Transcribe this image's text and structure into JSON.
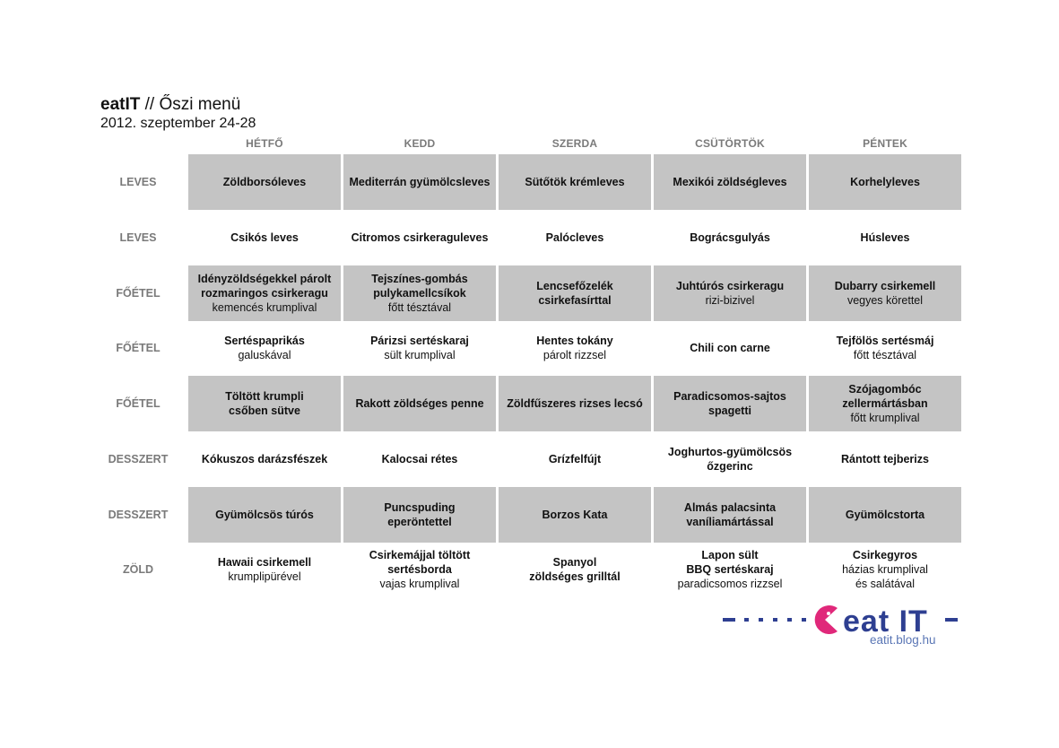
{
  "header": {
    "brand": "eatIT",
    "title_rest": " // Őszi menü",
    "date_range": "2012. szeptember 24-28"
  },
  "days": [
    "HÉTFŐ",
    "KEDD",
    "SZERDA",
    "CSÜTÖRTÖK",
    "PÉNTEK"
  ],
  "rows": [
    {
      "category": "LEVES",
      "shaded": true,
      "items": [
        {
          "name": "Zöldborsóleves",
          "side": ""
        },
        {
          "name": "Mediterrán gyümölcsleves",
          "side": ""
        },
        {
          "name": "Sütőtök krémleves",
          "side": ""
        },
        {
          "name": "Mexikói zöldségleves",
          "side": ""
        },
        {
          "name": "Korhelyleves",
          "side": ""
        }
      ]
    },
    {
      "category": "LEVES",
      "shaded": false,
      "items": [
        {
          "name": "Csikós leves",
          "side": ""
        },
        {
          "name": "Citromos csirkeraguleves",
          "side": ""
        },
        {
          "name": "Palócleves",
          "side": ""
        },
        {
          "name": "Bográcsgulyás",
          "side": ""
        },
        {
          "name": "Húsleves",
          "side": ""
        }
      ]
    },
    {
      "category": "FŐÉTEL",
      "shaded": true,
      "items": [
        {
          "name": "Idényzöldségekkel párolt\nrozmaringos csirkeragu",
          "side": "kemencés krumplival"
        },
        {
          "name": "Tejszínes-gombás\npulykamellcsíkok",
          "side": "főtt tésztával"
        },
        {
          "name": "Lencsefőzelék\ncsirkefasírttal",
          "side": ""
        },
        {
          "name": "Juhtúrós csirkeragu",
          "side": "rizi-bizivel"
        },
        {
          "name": "Dubarry csirkemell",
          "side": "vegyes körettel"
        }
      ]
    },
    {
      "category": "FŐÉTEL",
      "shaded": false,
      "items": [
        {
          "name": "Sertéspaprikás",
          "side": "galuskával"
        },
        {
          "name": "Párizsi sertéskaraj",
          "side": "sült krumplival"
        },
        {
          "name": "Hentes tokány",
          "side": "párolt rizzsel"
        },
        {
          "name": "Chili con carne",
          "side": ""
        },
        {
          "name": "Tejfölös sertésmáj",
          "side": "főtt tésztával"
        }
      ]
    },
    {
      "category": "FŐÉTEL",
      "shaded": true,
      "items": [
        {
          "name": "Töltött krumpli\ncsőben sütve",
          "side": ""
        },
        {
          "name": "Rakott zöldséges penne",
          "side": ""
        },
        {
          "name": "Zöldfűszeres rizses lecsó",
          "side": ""
        },
        {
          "name": "Paradicsomos-sajtos\nspagetti",
          "side": ""
        },
        {
          "name": "Szójagombóc\nzellermártásban",
          "side": "főtt krumplival"
        }
      ]
    },
    {
      "category": "DESSZERT",
      "shaded": false,
      "items": [
        {
          "name": "Kókuszos darázsfészek",
          "side": ""
        },
        {
          "name": "Kalocsai rétes",
          "side": ""
        },
        {
          "name": "Grízfelfújt",
          "side": ""
        },
        {
          "name": "Joghurtos-gyümölcsös\nőzgerinc",
          "side": ""
        },
        {
          "name": "Rántott tejberizs",
          "side": ""
        }
      ]
    },
    {
      "category": "DESSZERT",
      "shaded": true,
      "items": [
        {
          "name": "Gyümölcsös túrós",
          "side": ""
        },
        {
          "name": "Puncspuding\neperöntettel",
          "side": ""
        },
        {
          "name": "Borzos Kata",
          "side": ""
        },
        {
          "name": "Almás palacsinta\nvaníliamártással",
          "side": ""
        },
        {
          "name": "Gyümölcstorta",
          "side": ""
        }
      ]
    },
    {
      "category": "ZÖLD",
      "shaded": false,
      "items": [
        {
          "name": "Hawaii csirkemell",
          "side": "krumplipürével"
        },
        {
          "name": "Csirkemájjal töltött\nsertésborda",
          "side": "vajas krumplival"
        },
        {
          "name": "Spanyol\nzöldséges grilltál",
          "side": ""
        },
        {
          "name": "Lapon sült\nBBQ sertéskaraj",
          "side": "paradicsomos rizzsel"
        },
        {
          "name": "Csirkegyros",
          "side": "házias krumplival\nés salátával"
        }
      ]
    }
  ],
  "logo": {
    "text": "eat IT",
    "url": "eatit.blog.hu",
    "color_primary": "#2e3f91",
    "color_accent": "#e0287a",
    "icon": "pacman-icon"
  },
  "colors": {
    "cell_shade": "#c4c4c4",
    "label_gray": "#7a7a7a"
  }
}
